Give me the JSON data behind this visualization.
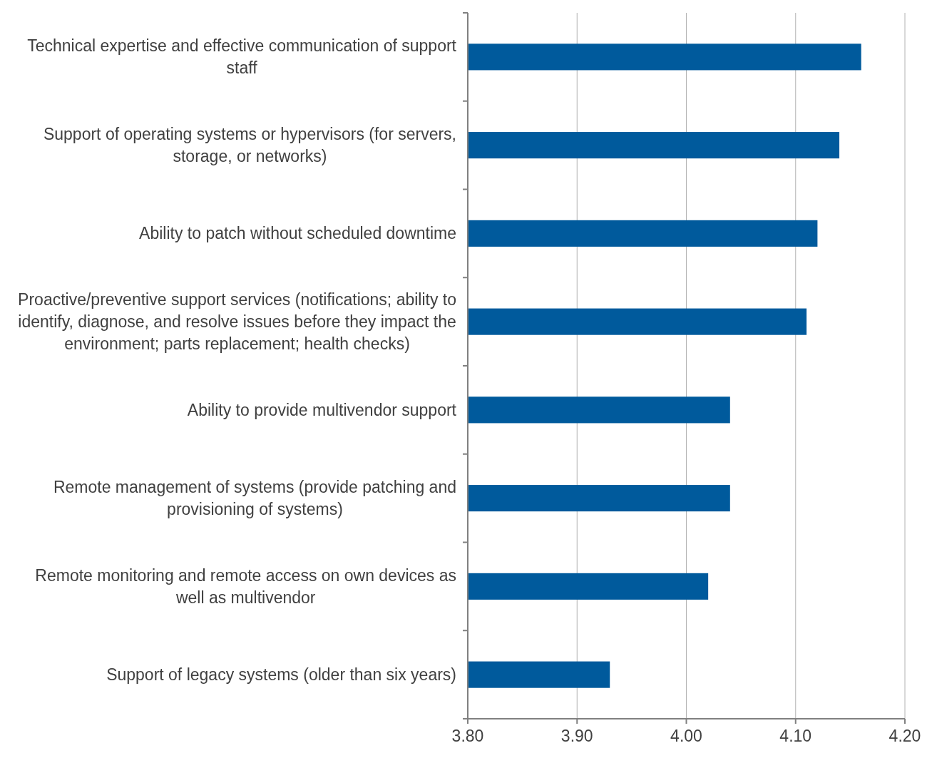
{
  "chart_data": {
    "type": "bar",
    "orientation": "horizontal",
    "categories": [
      "Technical expertise and effective communication of support staff",
      "Support of operating systems or hypervisors (for servers, storage, or networks)",
      "Ability to patch without scheduled downtime",
      "Proactive/preventive support services (notifications; ability to identify, diagnose, and resolve issues before they impact the environment; parts replacement; health checks)",
      "Ability to provide multivendor support",
      "Remote management of systems (provide patching and provisioning of systems)",
      "Remote monitoring and remote access on own devices as well as multivendor",
      "Support of legacy systems (older than six years)"
    ],
    "values": [
      4.16,
      4.14,
      4.12,
      4.11,
      4.04,
      4.04,
      4.02,
      3.93
    ],
    "color": "#005a9c",
    "xlim": [
      3.8,
      4.2
    ],
    "xticks": [
      {
        "value": 3.8,
        "label": "3.80"
      },
      {
        "value": 3.9,
        "label": "3.90"
      },
      {
        "value": 4.0,
        "label": "4.00"
      },
      {
        "value": 4.1,
        "label": "4.10"
      },
      {
        "value": 4.2,
        "label": "4.20"
      }
    ],
    "grid": "x"
  }
}
